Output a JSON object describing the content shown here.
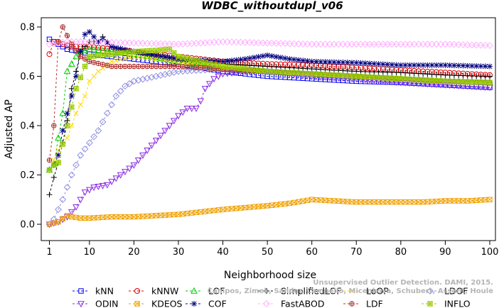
{
  "chart_data": {
    "type": "line",
    "title": "WDBC_withoutdupl_v06",
    "xlabel": "Neighborhood size",
    "ylabel": "Adjusted AP",
    "xlim": [
      1,
      100
    ],
    "ylim": [
      0,
      0.8
    ],
    "x_ticks": [
      "1",
      "10",
      "20",
      "30",
      "40",
      "50",
      "60",
      "70",
      "80",
      "90",
      "100"
    ],
    "y_ticks": [
      "0.0",
      "0.2",
      "0.4",
      "0.6",
      "0.8"
    ],
    "grid": false,
    "legend_position": "bottom",
    "credit": [
      "Campos, Zimek, Sander, Campello, Micenkova, Schubert, Assent, Houle",
      "Unsupervised Outlier Detection. DAMI, 2015."
    ],
    "series": [
      {
        "name": "kNN",
        "color": "#0000ee",
        "marker": "square",
        "points": [
          [
            1,
            0.75
          ],
          [
            2,
            0.74
          ],
          [
            3,
            0.73
          ],
          [
            4,
            0.72
          ],
          [
            5,
            0.71
          ],
          [
            8,
            0.7
          ],
          [
            10,
            0.69
          ],
          [
            15,
            0.68
          ],
          [
            20,
            0.67
          ],
          [
            30,
            0.65
          ],
          [
            40,
            0.62
          ],
          [
            50,
            0.6
          ],
          [
            60,
            0.59
          ],
          [
            70,
            0.58
          ],
          [
            80,
            0.575
          ],
          [
            90,
            0.565
          ],
          [
            100,
            0.555
          ]
        ]
      },
      {
        "name": "kNNW",
        "color": "#dd0000",
        "marker": "circle",
        "points": [
          [
            1,
            0.69
          ],
          [
            2,
            0.74
          ],
          [
            3,
            0.74
          ],
          [
            4,
            0.73
          ],
          [
            6,
            0.72
          ],
          [
            10,
            0.72
          ],
          [
            15,
            0.71
          ],
          [
            20,
            0.7
          ],
          [
            30,
            0.68
          ],
          [
            40,
            0.66
          ],
          [
            50,
            0.65
          ],
          [
            60,
            0.645
          ],
          [
            70,
            0.635
          ],
          [
            80,
            0.625
          ],
          [
            90,
            0.615
          ],
          [
            100,
            0.605
          ]
        ]
      },
      {
        "name": "LOF",
        "color": "#00cc00",
        "marker": "triangle",
        "points": [
          [
            1,
            0.22
          ],
          [
            2,
            0.24
          ],
          [
            3,
            0.35
          ],
          [
            4,
            0.45
          ],
          [
            5,
            0.62
          ],
          [
            6,
            0.65
          ],
          [
            7,
            0.68
          ],
          [
            8,
            0.7
          ],
          [
            10,
            0.71
          ],
          [
            15,
            0.7
          ],
          [
            20,
            0.69
          ],
          [
            30,
            0.66
          ],
          [
            40,
            0.63
          ],
          [
            50,
            0.62
          ],
          [
            60,
            0.61
          ],
          [
            70,
            0.6
          ],
          [
            80,
            0.59
          ],
          [
            90,
            0.58
          ],
          [
            100,
            0.575
          ]
        ]
      },
      {
        "name": "SimplifiedLOF",
        "color": "#000000",
        "marker": "plus",
        "points": [
          [
            1,
            0.12
          ],
          [
            2,
            0.19
          ],
          [
            3,
            0.25
          ],
          [
            4,
            0.33
          ],
          [
            5,
            0.42
          ],
          [
            6,
            0.55
          ],
          [
            7,
            0.62
          ],
          [
            8,
            0.7
          ],
          [
            10,
            0.74
          ],
          [
            12,
            0.74
          ],
          [
            13,
            0.76
          ],
          [
            15,
            0.72
          ],
          [
            20,
            0.7
          ],
          [
            30,
            0.67
          ],
          [
            40,
            0.65
          ],
          [
            50,
            0.64
          ],
          [
            60,
            0.63
          ],
          [
            70,
            0.62
          ],
          [
            80,
            0.615
          ],
          [
            90,
            0.605
          ],
          [
            100,
            0.6
          ]
        ]
      },
      {
        "name": "LoOP",
        "color": "#ffd700",
        "marker": "x",
        "points": [
          [
            1,
            0.22
          ],
          [
            3,
            0.3
          ],
          [
            5,
            0.35
          ],
          [
            7,
            0.45
          ],
          [
            9,
            0.52
          ],
          [
            10,
            0.58
          ],
          [
            12,
            0.62
          ],
          [
            15,
            0.66
          ],
          [
            20,
            0.68
          ],
          [
            30,
            0.66
          ],
          [
            40,
            0.63
          ],
          [
            50,
            0.62
          ],
          [
            60,
            0.61
          ],
          [
            70,
            0.6
          ],
          [
            80,
            0.59
          ],
          [
            90,
            0.58
          ],
          [
            100,
            0.575
          ]
        ]
      },
      {
        "name": "LDOF",
        "color": "#9090e0",
        "marker": "diamond",
        "points": [
          [
            1,
            0.0
          ],
          [
            2,
            0.02
          ],
          [
            4,
            0.1
          ],
          [
            6,
            0.2
          ],
          [
            8,
            0.28
          ],
          [
            10,
            0.33
          ],
          [
            12,
            0.38
          ],
          [
            14,
            0.45
          ],
          [
            16,
            0.52
          ],
          [
            18,
            0.56
          ],
          [
            20,
            0.58
          ],
          [
            25,
            0.6
          ],
          [
            30,
            0.62
          ],
          [
            40,
            0.63
          ],
          [
            50,
            0.62
          ],
          [
            60,
            0.61
          ],
          [
            70,
            0.6
          ],
          [
            80,
            0.59
          ],
          [
            90,
            0.58
          ],
          [
            100,
            0.575
          ]
        ]
      },
      {
        "name": "ODIN",
        "color": "#8a2be2",
        "marker": "triangle-down",
        "points": [
          [
            1,
            0.0
          ],
          [
            3,
            0.01
          ],
          [
            5,
            0.03
          ],
          [
            7,
            0.07
          ],
          [
            9,
            0.13
          ],
          [
            11,
            0.15
          ],
          [
            14,
            0.16
          ],
          [
            17,
            0.2
          ],
          [
            20,
            0.24
          ],
          [
            23,
            0.3
          ],
          [
            26,
            0.36
          ],
          [
            30,
            0.44
          ],
          [
            32,
            0.47
          ],
          [
            34,
            0.47
          ],
          [
            35,
            0.5
          ],
          [
            36,
            0.55
          ],
          [
            38,
            0.59
          ],
          [
            40,
            0.61
          ],
          [
            45,
            0.62
          ],
          [
            50,
            0.62
          ],
          [
            60,
            0.6
          ],
          [
            70,
            0.59
          ],
          [
            80,
            0.575
          ],
          [
            90,
            0.565
          ],
          [
            100,
            0.555
          ]
        ]
      },
      {
        "name": "KDEOS",
        "color": "#f0a000",
        "marker": "square-x",
        "points": [
          [
            1,
            0.0
          ],
          [
            3,
            0.01
          ],
          [
            5,
            0.035
          ],
          [
            6,
            0.03
          ],
          [
            8,
            0.025
          ],
          [
            10,
            0.025
          ],
          [
            15,
            0.03
          ],
          [
            20,
            0.03
          ],
          [
            30,
            0.04
          ],
          [
            40,
            0.06
          ],
          [
            50,
            0.075
          ],
          [
            55,
            0.085
          ],
          [
            60,
            0.1
          ],
          [
            65,
            0.095
          ],
          [
            70,
            0.09
          ],
          [
            75,
            0.09
          ],
          [
            80,
            0.09
          ],
          [
            85,
            0.09
          ],
          [
            90,
            0.095
          ],
          [
            95,
            0.095
          ],
          [
            100,
            0.1
          ]
        ]
      },
      {
        "name": "COF",
        "color": "#000080",
        "marker": "asterisk",
        "points": [
          [
            1,
            0.22
          ],
          [
            2,
            0.24
          ],
          [
            3,
            0.28
          ],
          [
            4,
            0.38
          ],
          [
            5,
            0.45
          ],
          [
            6,
            0.52
          ],
          [
            7,
            0.6
          ],
          [
            8,
            0.7
          ],
          [
            9,
            0.77
          ],
          [
            10,
            0.78
          ],
          [
            12,
            0.74
          ],
          [
            13,
            0.75
          ],
          [
            15,
            0.72
          ],
          [
            20,
            0.7
          ],
          [
            30,
            0.67
          ],
          [
            40,
            0.66
          ],
          [
            45,
            0.67
          ],
          [
            50,
            0.685
          ],
          [
            55,
            0.67
          ],
          [
            60,
            0.66
          ],
          [
            70,
            0.655
          ],
          [
            80,
            0.645
          ],
          [
            90,
            0.645
          ],
          [
            100,
            0.64
          ]
        ]
      },
      {
        "name": "FastABOD",
        "color": "#ffb0ff",
        "marker": "diamond",
        "points": [
          [
            1,
            0.73
          ],
          [
            5,
            0.74
          ],
          [
            10,
            0.74
          ],
          [
            20,
            0.735
          ],
          [
            30,
            0.73
          ],
          [
            40,
            0.74
          ],
          [
            50,
            0.735
          ],
          [
            60,
            0.73
          ],
          [
            70,
            0.73
          ],
          [
            80,
            0.73
          ],
          [
            90,
            0.73
          ],
          [
            100,
            0.725
          ]
        ]
      },
      {
        "name": "LDF",
        "color": "#b03030",
        "marker": "circle-plus",
        "points": [
          [
            1,
            0.26
          ],
          [
            2,
            0.4
          ],
          [
            3,
            0.74
          ],
          [
            4,
            0.8
          ],
          [
            6,
            0.73
          ],
          [
            8,
            0.68
          ],
          [
            10,
            0.66
          ],
          [
            15,
            0.64
          ],
          [
            20,
            0.64
          ],
          [
            30,
            0.64
          ],
          [
            40,
            0.63
          ],
          [
            50,
            0.62
          ],
          [
            60,
            0.61
          ],
          [
            70,
            0.6
          ],
          [
            80,
            0.59
          ],
          [
            90,
            0.58
          ],
          [
            100,
            0.575
          ]
        ]
      },
      {
        "name": "INFLO",
        "color": "#99cc00",
        "marker": "star-square",
        "points": [
          [
            1,
            0.22
          ],
          [
            2,
            0.24
          ],
          [
            3,
            0.25
          ],
          [
            5,
            0.4
          ],
          [
            7,
            0.55
          ],
          [
            9,
            0.64
          ],
          [
            10,
            0.68
          ],
          [
            15,
            0.69
          ],
          [
            20,
            0.7
          ],
          [
            25,
            0.705
          ],
          [
            28,
            0.71
          ],
          [
            30,
            0.68
          ],
          [
            40,
            0.64
          ],
          [
            50,
            0.62
          ],
          [
            60,
            0.61
          ],
          [
            70,
            0.6
          ],
          [
            80,
            0.59
          ],
          [
            90,
            0.58
          ],
          [
            100,
            0.575
          ]
        ]
      }
    ]
  }
}
